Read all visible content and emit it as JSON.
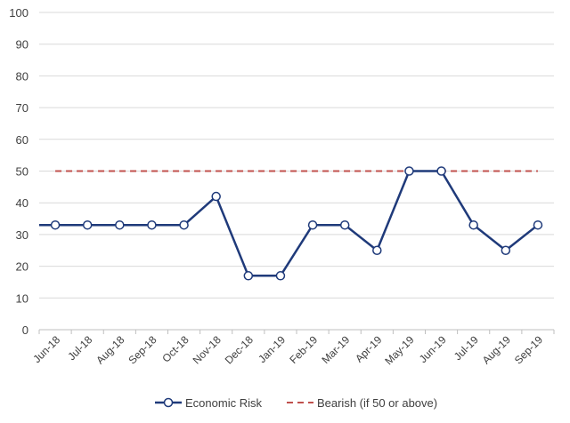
{
  "chart_data": {
    "type": "line",
    "title": "",
    "xlabel": "",
    "ylabel": "",
    "ylim": [
      0,
      100
    ],
    "ytick_step": 10,
    "grid": true,
    "legend_position": "bottom",
    "categories": [
      "Jun-18",
      "Jul-18",
      "Aug-18",
      "Sep-18",
      "Oct-18",
      "Nov-18",
      "Dec-18",
      "Jan-19",
      "Feb-19",
      "Mar-19",
      "Apr-19",
      "May-19",
      "Jun-19",
      "Jul-19",
      "Aug-19",
      "Sep-19"
    ],
    "series": [
      {
        "name": "Economic Risk",
        "style": "solid-markers",
        "color": "#1f3a7a",
        "values": [
          33,
          33,
          33,
          33,
          33,
          42,
          17,
          17,
          33,
          33,
          25,
          50,
          50,
          33,
          25,
          33
        ]
      },
      {
        "name": "Bearish (if 50 or above)",
        "style": "dashed",
        "color": "#c0504d",
        "values": [
          50,
          50,
          50,
          50,
          50,
          50,
          50,
          50,
          50,
          50,
          50,
          50,
          50,
          50,
          50,
          50
        ]
      }
    ]
  }
}
